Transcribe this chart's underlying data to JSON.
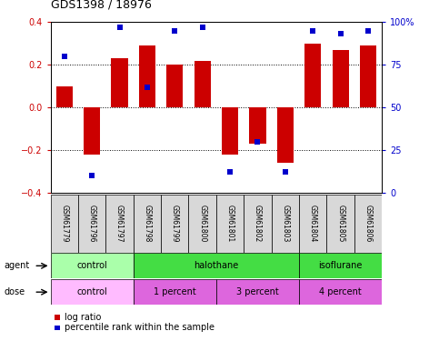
{
  "title": "GDS1398 / 18976",
  "samples": [
    "GSM61779",
    "GSM61796",
    "GSM61797",
    "GSM61798",
    "GSM61799",
    "GSM61800",
    "GSM61801",
    "GSM61802",
    "GSM61803",
    "GSM61804",
    "GSM61805",
    "GSM61806"
  ],
  "log_ratio": [
    0.1,
    -0.22,
    0.23,
    0.29,
    0.2,
    0.22,
    -0.22,
    -0.17,
    -0.26,
    0.3,
    0.27,
    0.29
  ],
  "percentile": [
    80,
    10,
    97,
    62,
    95,
    97,
    12,
    30,
    12,
    95,
    93,
    95
  ],
  "bar_color": "#cc0000",
  "dot_color": "#0000cc",
  "ylim": [
    -0.4,
    0.4
  ],
  "y2lim": [
    0,
    100
  ],
  "yticks": [
    -0.4,
    -0.2,
    0.0,
    0.2,
    0.4
  ],
  "y2ticks": [
    0,
    25,
    50,
    75,
    100
  ],
  "y2ticklabels": [
    "0",
    "25",
    "50",
    "75",
    "100%"
  ],
  "dotted_lines": [
    -0.2,
    0.0,
    0.2
  ],
  "agent_groups": [
    {
      "label": "control",
      "start": 0,
      "end": 3,
      "color": "#aaffaa"
    },
    {
      "label": "halothane",
      "start": 3,
      "end": 9,
      "color": "#44dd44"
    },
    {
      "label": "isoflurane",
      "start": 9,
      "end": 12,
      "color": "#44dd44"
    }
  ],
  "dose_groups": [
    {
      "label": "control",
      "start": 0,
      "end": 3,
      "color": "#ffbbff"
    },
    {
      "label": "1 percent",
      "start": 3,
      "end": 6,
      "color": "#dd66dd"
    },
    {
      "label": "3 percent",
      "start": 6,
      "end": 9,
      "color": "#dd66dd"
    },
    {
      "label": "4 percent",
      "start": 9,
      "end": 12,
      "color": "#dd66dd"
    }
  ],
  "legend_bar_label": "log ratio",
  "legend_dot_label": "percentile rank within the sample",
  "agent_label": "agent",
  "dose_label": "dose",
  "tick_label_color_left": "#cc0000",
  "tick_label_color_right": "#0000cc",
  "sample_box_color": "#d8d8d8",
  "bar_width": 0.6
}
